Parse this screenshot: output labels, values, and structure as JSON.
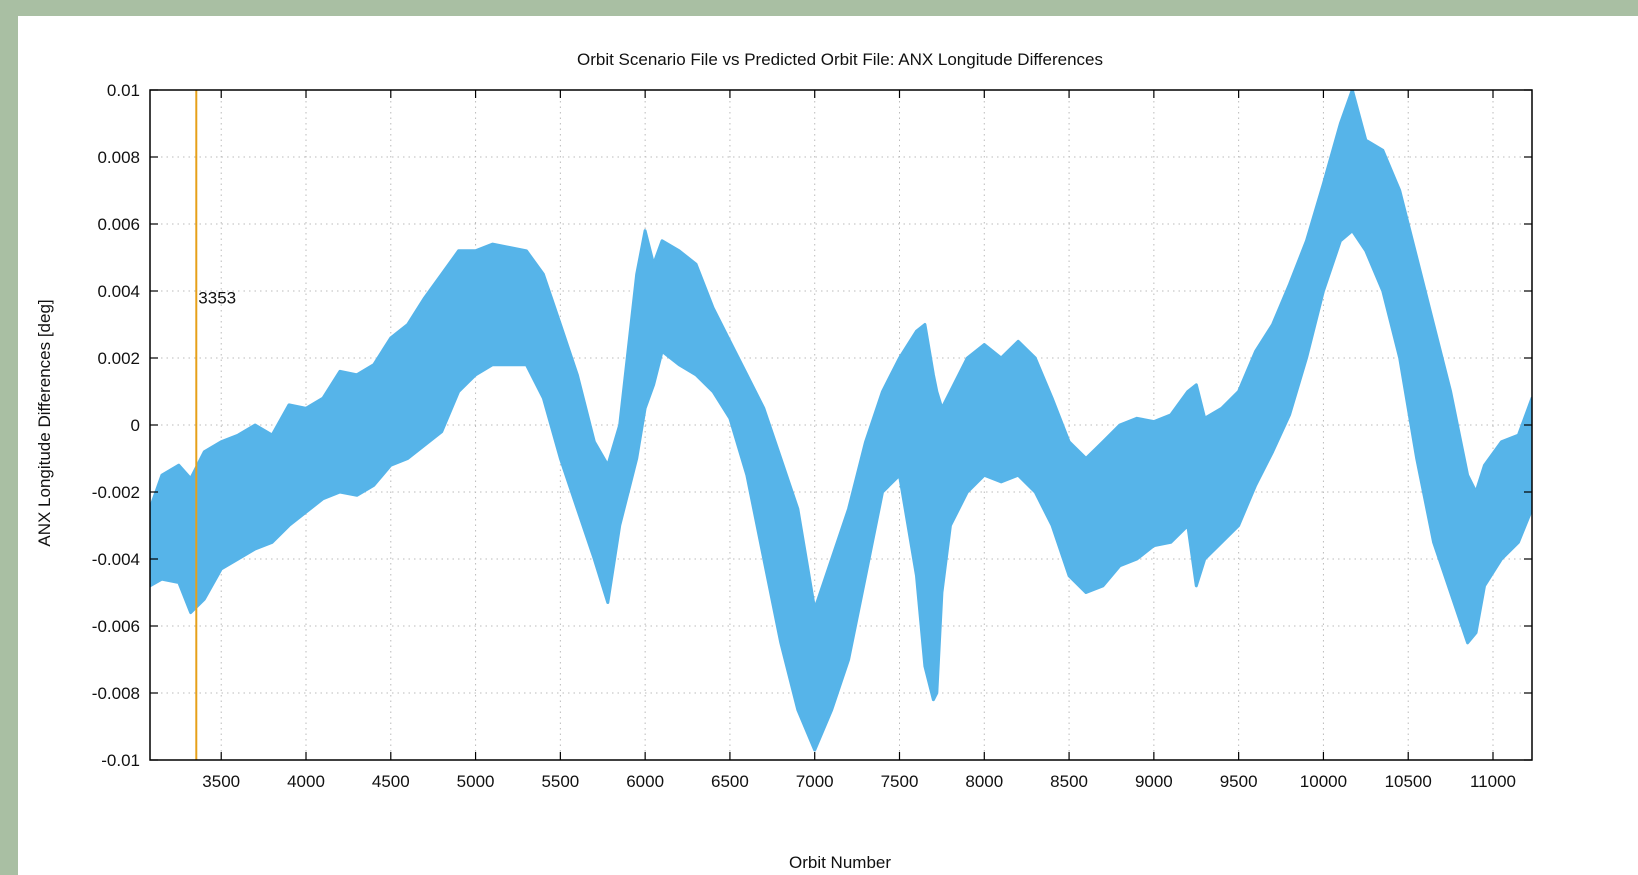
{
  "chart_data": {
    "type": "scatter",
    "title": "Orbit Scenario File vs Predicted Orbit File: ANX Longitude Differences",
    "xlabel": "Orbit Number",
    "ylabel": "ANX Longitude Differences [deg]",
    "xlim": [
      3080,
      11230
    ],
    "ylim": [
      -0.01,
      0.01
    ],
    "x_ticks": [
      "3500",
      "4000",
      "4500",
      "5000",
      "5500",
      "6000",
      "6500",
      "7000",
      "7500",
      "8000",
      "8500",
      "9000",
      "9500",
      "10000",
      "10500",
      "11000"
    ],
    "y_ticks": [
      "0.01",
      "0.008",
      "0.006",
      "0.004",
      "0.002",
      "0",
      "-0.002",
      "-0.004",
      "-0.006",
      "-0.008",
      "-0.01"
    ],
    "grid": true,
    "series": [
      {
        "color": "#56b4e9",
        "x": [
          3080,
          3150,
          3250,
          3320,
          3400,
          3500,
          3600,
          3700,
          3800,
          3900,
          4000,
          4100,
          4200,
          4300,
          4400,
          4500,
          4600,
          4700,
          4800,
          4900,
          5000,
          5100,
          5200,
          5300,
          5400,
          5500,
          5600,
          5700,
          5780,
          5850,
          5950,
          6000,
          6050,
          6100,
          6200,
          6300,
          6400,
          6500,
          6600,
          6700,
          6800,
          6900,
          7000,
          7100,
          7200,
          7300,
          7400,
          7500,
          7600,
          7650,
          7700,
          7720,
          7750,
          7800,
          7900,
          8000,
          8100,
          8200,
          8300,
          8400,
          8500,
          8600,
          8700,
          8800,
          8900,
          9000,
          9100,
          9200,
          9250,
          9300,
          9400,
          9500,
          9600,
          9700,
          9800,
          9900,
          10000,
          10100,
          10170,
          10250,
          10350,
          10450,
          10550,
          10650,
          10750,
          10850,
          10900,
          10950,
          11050,
          11150,
          11230
        ],
        "upper": [
          -0.0025,
          -0.0015,
          -0.0012,
          -0.0016,
          -0.0008,
          -0.0005,
          -0.0003,
          0.0,
          -0.0003,
          0.0006,
          0.0005,
          0.0008,
          0.0016,
          0.0015,
          0.0018,
          0.0026,
          0.003,
          0.0038,
          0.0045,
          0.0052,
          0.0052,
          0.0054,
          0.0053,
          0.0052,
          0.0045,
          0.003,
          0.0015,
          -0.0005,
          -0.0012,
          0.0,
          0.0045,
          0.0058,
          0.0048,
          0.0055,
          0.0052,
          0.0048,
          0.0035,
          0.0025,
          0.0015,
          0.0005,
          -0.001,
          -0.0025,
          -0.0055,
          -0.004,
          -0.0025,
          -0.0005,
          0.001,
          0.002,
          0.0028,
          0.003,
          0.0015,
          0.001,
          0.0005,
          0.001,
          0.002,
          0.0024,
          0.002,
          0.0025,
          0.002,
          0.0008,
          -0.0005,
          -0.001,
          -0.0005,
          0.0,
          0.0002,
          0.0001,
          0.0003,
          0.001,
          0.0012,
          0.0002,
          0.0005,
          0.001,
          0.0022,
          0.003,
          0.0042,
          0.0055,
          0.0072,
          0.009,
          0.01,
          0.0085,
          0.0082,
          0.007,
          0.005,
          0.003,
          0.001,
          -0.0015,
          -0.002,
          -0.0012,
          -0.0005,
          -0.0003,
          0.0008
        ],
        "lower": [
          -0.0048,
          -0.0046,
          -0.0047,
          -0.0056,
          -0.0052,
          -0.0043,
          -0.004,
          -0.0037,
          -0.0035,
          -0.003,
          -0.0026,
          -0.0022,
          -0.002,
          -0.0021,
          -0.0018,
          -0.0012,
          -0.001,
          -0.0006,
          -0.0002,
          0.001,
          0.0015,
          0.0018,
          0.0018,
          0.0018,
          0.0008,
          -0.001,
          -0.0025,
          -0.004,
          -0.0053,
          -0.003,
          -0.001,
          0.0005,
          0.0012,
          0.0022,
          0.0018,
          0.0015,
          0.001,
          0.0002,
          -0.0015,
          -0.004,
          -0.0065,
          -0.0085,
          -0.0097,
          -0.0085,
          -0.007,
          -0.0045,
          -0.002,
          -0.0015,
          -0.0045,
          -0.0072,
          -0.0082,
          -0.008,
          -0.005,
          -0.003,
          -0.002,
          -0.0015,
          -0.0017,
          -0.0015,
          -0.002,
          -0.003,
          -0.0045,
          -0.005,
          -0.0048,
          -0.0042,
          -0.004,
          -0.0036,
          -0.0035,
          -0.003,
          -0.0048,
          -0.004,
          -0.0035,
          -0.003,
          -0.0018,
          -0.0008,
          0.0003,
          0.002,
          0.004,
          0.0055,
          0.0058,
          0.0052,
          0.004,
          0.002,
          -0.001,
          -0.0035,
          -0.005,
          -0.0065,
          -0.0062,
          -0.0048,
          -0.004,
          -0.0035,
          -0.0025
        ]
      }
    ],
    "vline": {
      "x": 3353,
      "label": "3353",
      "label_y": 0.0038,
      "color": "#e6a01a"
    }
  }
}
